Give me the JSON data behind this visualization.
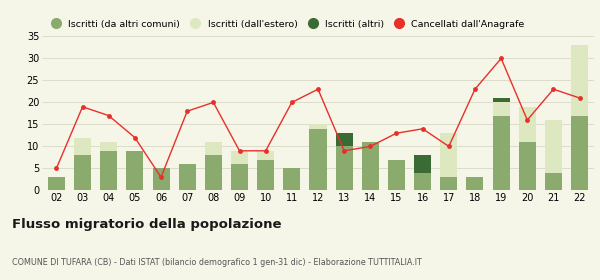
{
  "years": [
    "02",
    "03",
    "04",
    "05",
    "06",
    "07",
    "08",
    "09",
    "10",
    "11",
    "12",
    "13",
    "14",
    "15",
    "16",
    "17",
    "18",
    "19",
    "20",
    "21",
    "22"
  ],
  "iscritti_altri_comuni": [
    3,
    8,
    9,
    9,
    5,
    6,
    8,
    6,
    7,
    5,
    14,
    10,
    11,
    7,
    4,
    3,
    3,
    17,
    11,
    4,
    17
  ],
  "iscritti_estero": [
    0,
    4,
    2,
    0,
    0,
    0,
    3,
    3,
    2,
    0,
    1,
    0,
    0,
    0,
    0,
    10,
    0,
    3,
    8,
    12,
    16
  ],
  "iscritti_altri": [
    0,
    0,
    0,
    0,
    0,
    0,
    0,
    0,
    0,
    0,
    0,
    3,
    0,
    0,
    4,
    0,
    0,
    1,
    0,
    0,
    0
  ],
  "cancellati": [
    5,
    19,
    17,
    12,
    3,
    18,
    20,
    9,
    9,
    20,
    23,
    9,
    10,
    13,
    14,
    10,
    23,
    30,
    16,
    23,
    21
  ],
  "color_altri_comuni": "#8aaa6e",
  "color_estero": "#dde8c0",
  "color_altri": "#3a6b35",
  "color_cancellati": "#e8302a",
  "ylim": [
    0,
    35
  ],
  "yticks": [
    0,
    5,
    10,
    15,
    20,
    25,
    30,
    35
  ],
  "title": "Flusso migratorio della popolazione",
  "subtitle": "COMUNE DI TUFARA (CB) - Dati ISTAT (bilancio demografico 1 gen-31 dic) - Elaborazione TUTTITALIA.IT",
  "legend_labels": [
    "Iscritti (da altri comuni)",
    "Iscritti (dall'estero)",
    "Iscritti (altri)",
    "Cancellati dall'Anagrafe"
  ],
  "bg_color": "#f5f5e8",
  "grid_color": "#d8d8c8"
}
